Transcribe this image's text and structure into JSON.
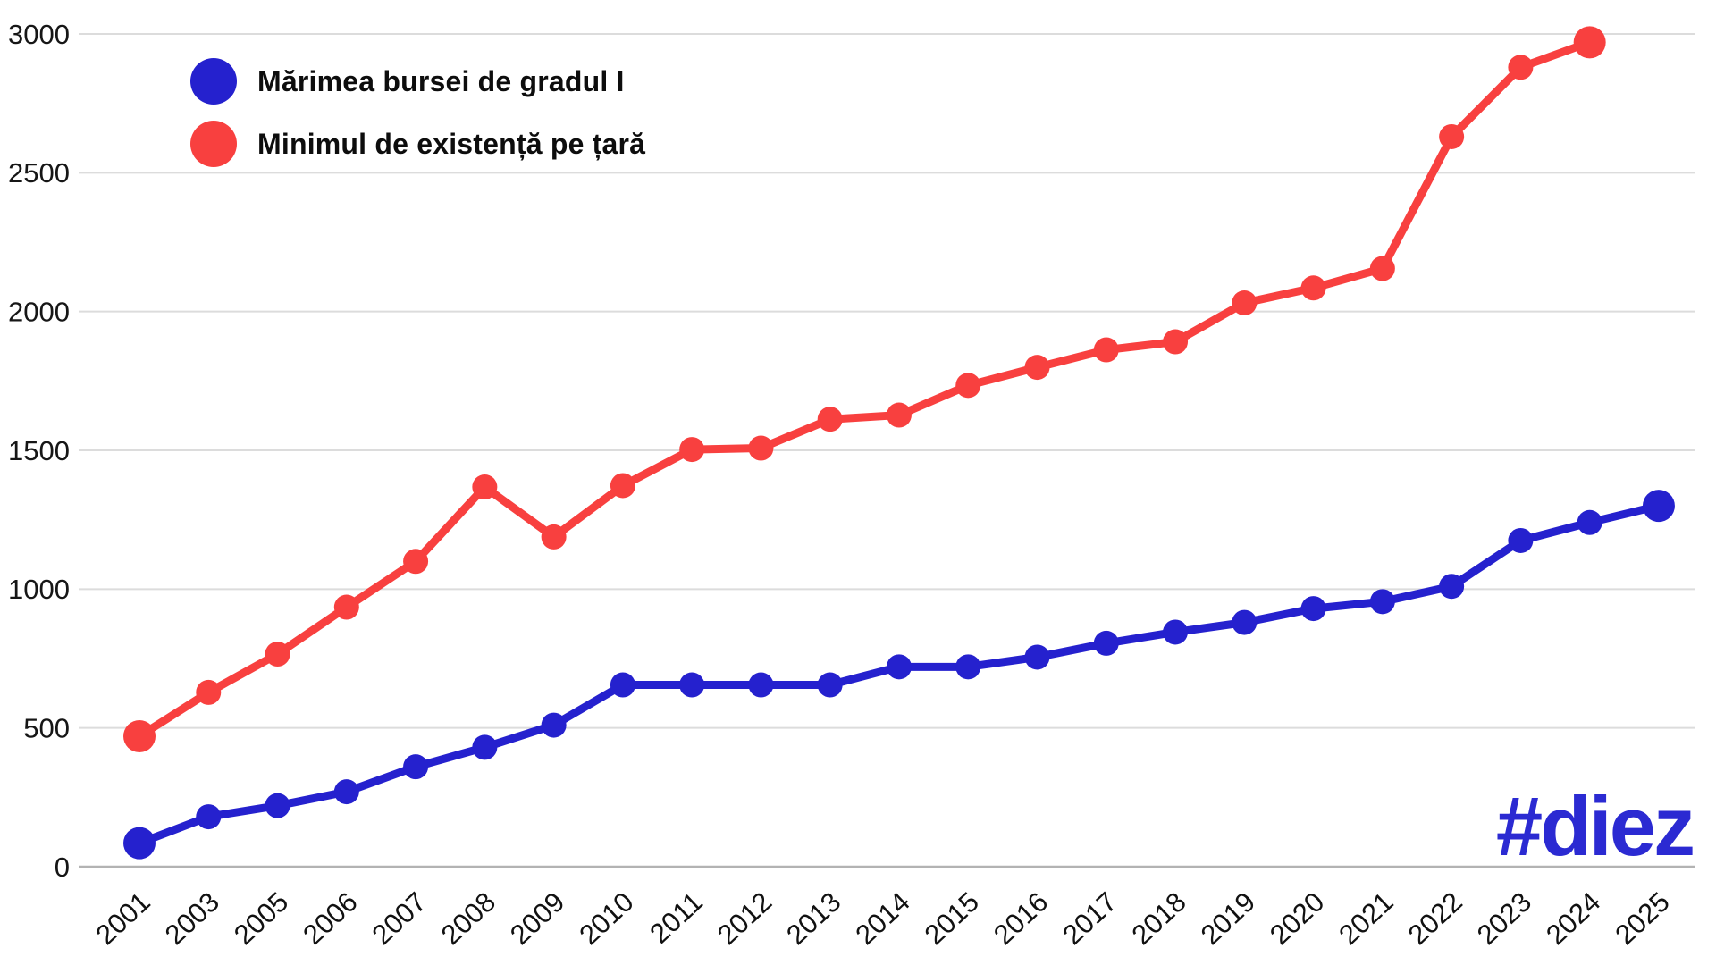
{
  "legend": {
    "items": [
      {
        "label": "Mărimea bursei de gradul I",
        "color": "#2521ce"
      },
      {
        "label": "Minimul de existență pe țară",
        "color": "#f8403f"
      }
    ]
  },
  "branding": {
    "logo_text": "#diez",
    "logo_color": "#2b2ad2"
  },
  "chart_data": {
    "type": "line",
    "title": "",
    "xlabel": "",
    "ylabel": "",
    "categories": [
      "2001",
      "2003",
      "2005",
      "2006",
      "2007",
      "2008",
      "2009",
      "2010",
      "2011",
      "2012",
      "2013",
      "2014",
      "2015",
      "2016",
      "2017",
      "2018",
      "2019",
      "2020",
      "2021",
      "2022",
      "2023",
      "2024",
      "2025"
    ],
    "series": [
      {
        "name": "Mărimea bursei de gradul I",
        "color": "#2521ce",
        "values": [
          85,
          180,
          220,
          270,
          360,
          430,
          510,
          655,
          655,
          655,
          655,
          720,
          720,
          755,
          805,
          845,
          880,
          930,
          955,
          1010,
          1175,
          1240,
          1300
        ]
      },
      {
        "name": "Minimul de existență pe țară",
        "color": "#f8403f",
        "values": [
          470,
          628,
          766,
          935,
          1100,
          1368,
          1188,
          1373,
          1503,
          1508,
          1612,
          1627,
          1734,
          1799,
          1862,
          1891,
          2031,
          2085,
          2155,
          2630,
          2880,
          2970,
          null
        ]
      }
    ],
    "y_ticks": [
      0,
      500,
      1000,
      1500,
      2000,
      2500,
      3000
    ],
    "ylim": [
      0,
      3000
    ],
    "grid": true,
    "gridline_color": "#dcdcdc",
    "axis_line_color": "#b3b3b3",
    "legend_position": "top-left",
    "background": "#ffffff"
  }
}
